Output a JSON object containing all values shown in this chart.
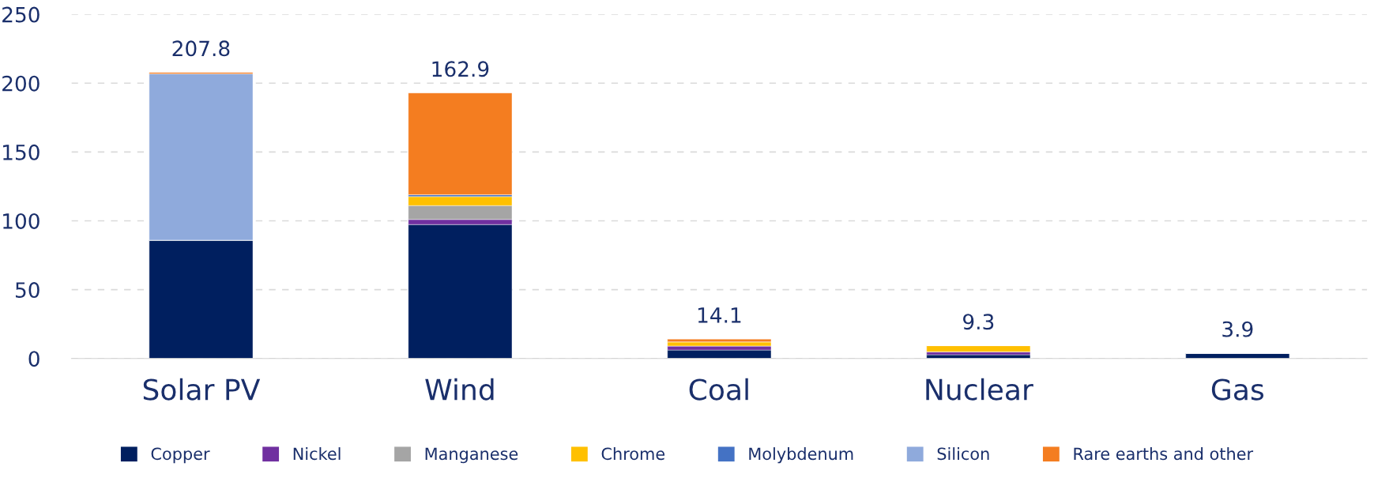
{
  "chart_data": {
    "type": "bar",
    "stacked": true,
    "categories": [
      "Solar PV",
      "Wind",
      "Coal",
      "Nuclear",
      "Gas"
    ],
    "series": [
      {
        "name": "Copper",
        "color": "#001f5f",
        "values": [
          86,
          97.3,
          6.1,
          2.7,
          3.9
        ]
      },
      {
        "name": "Nickel",
        "color": "#7030a0",
        "values": [
          null,
          3.7,
          3.0,
          2.2,
          null
        ]
      },
      {
        "name": "Manganese",
        "color": "#a5a5a5",
        "values": [
          null,
          10.1,
          null,
          null,
          null
        ]
      },
      {
        "name": "Chrome",
        "color": "#ffc000",
        "values": [
          null,
          6.5,
          3.0,
          4.4,
          null
        ]
      },
      {
        "name": "Molybdenum",
        "color": "#4472c4",
        "values": [
          null,
          1.4,
          null,
          null,
          null
        ]
      },
      {
        "name": "Silicon",
        "color": "#8faadc",
        "values": [
          120.8,
          null,
          null,
          null,
          null
        ]
      },
      {
        "name": "Rare earths and other",
        "color": "#f47d20",
        "values": [
          1.0,
          73.9,
          2.0,
          null,
          null
        ]
      }
    ],
    "annotations": [
      {
        "text": "207.8",
        "x": "Solar PV",
        "y": 207.8
      },
      {
        "text": "162.9",
        "x": "Wind",
        "y": 192.9
      },
      {
        "text": "14.1",
        "x": "Coal",
        "y": 14.1
      },
      {
        "text": "9.3",
        "x": "Nuclear",
        "y": 9.3
      },
      {
        "text": "3.9",
        "x": "Gas",
        "y": 3.9
      }
    ],
    "ylim": [
      0,
      250
    ],
    "yticks": [
      0,
      50,
      100,
      150,
      200,
      250
    ],
    "grid": "y",
    "legend": "bottom"
  }
}
